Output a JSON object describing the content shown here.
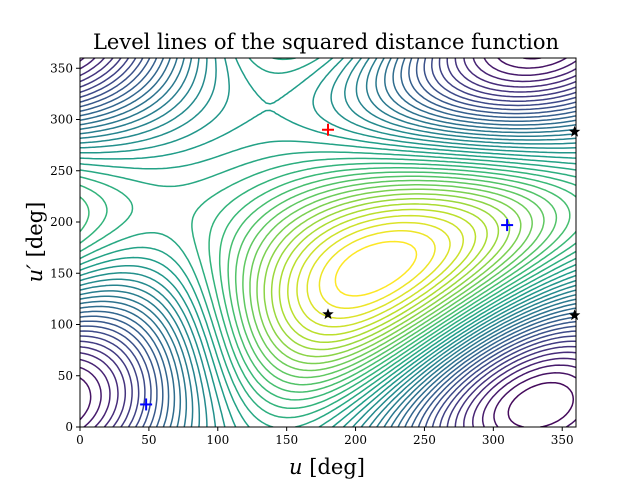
{
  "chart_data": {
    "type": "contour",
    "title": "Level lines of the squared distance function",
    "xlabel_var": "u",
    "xlabel_unit": "[deg]",
    "ylabel_var": "u′",
    "ylabel_unit": "[deg]",
    "xlim": [
      0,
      360
    ],
    "ylim": [
      0,
      360
    ],
    "xticks": [
      0,
      50,
      100,
      150,
      200,
      250,
      300,
      350
    ],
    "yticks": [
      0,
      50,
      100,
      150,
      200,
      250,
      300,
      350
    ],
    "grid": false,
    "colormap": "viridis",
    "levels": 40,
    "markers": [
      {
        "kind": "max",
        "symbol": "+",
        "color": "#ff0000",
        "x": 180,
        "y": 290
      },
      {
        "kind": "min",
        "symbol": "+",
        "color": "#0000ff",
        "x": 48,
        "y": 22
      },
      {
        "kind": "min",
        "symbol": "+",
        "color": "#0000ff",
        "x": 310,
        "y": 197
      },
      {
        "kind": "saddle",
        "symbol": "star",
        "color": "#000000",
        "x": 180,
        "y": 110
      },
      {
        "kind": "saddle",
        "symbol": "star",
        "color": "#000000",
        "x": 359,
        "y": 288
      },
      {
        "kind": "saddle",
        "symbol": "star",
        "color": "#000000",
        "x": 359,
        "y": 109
      }
    ]
  }
}
